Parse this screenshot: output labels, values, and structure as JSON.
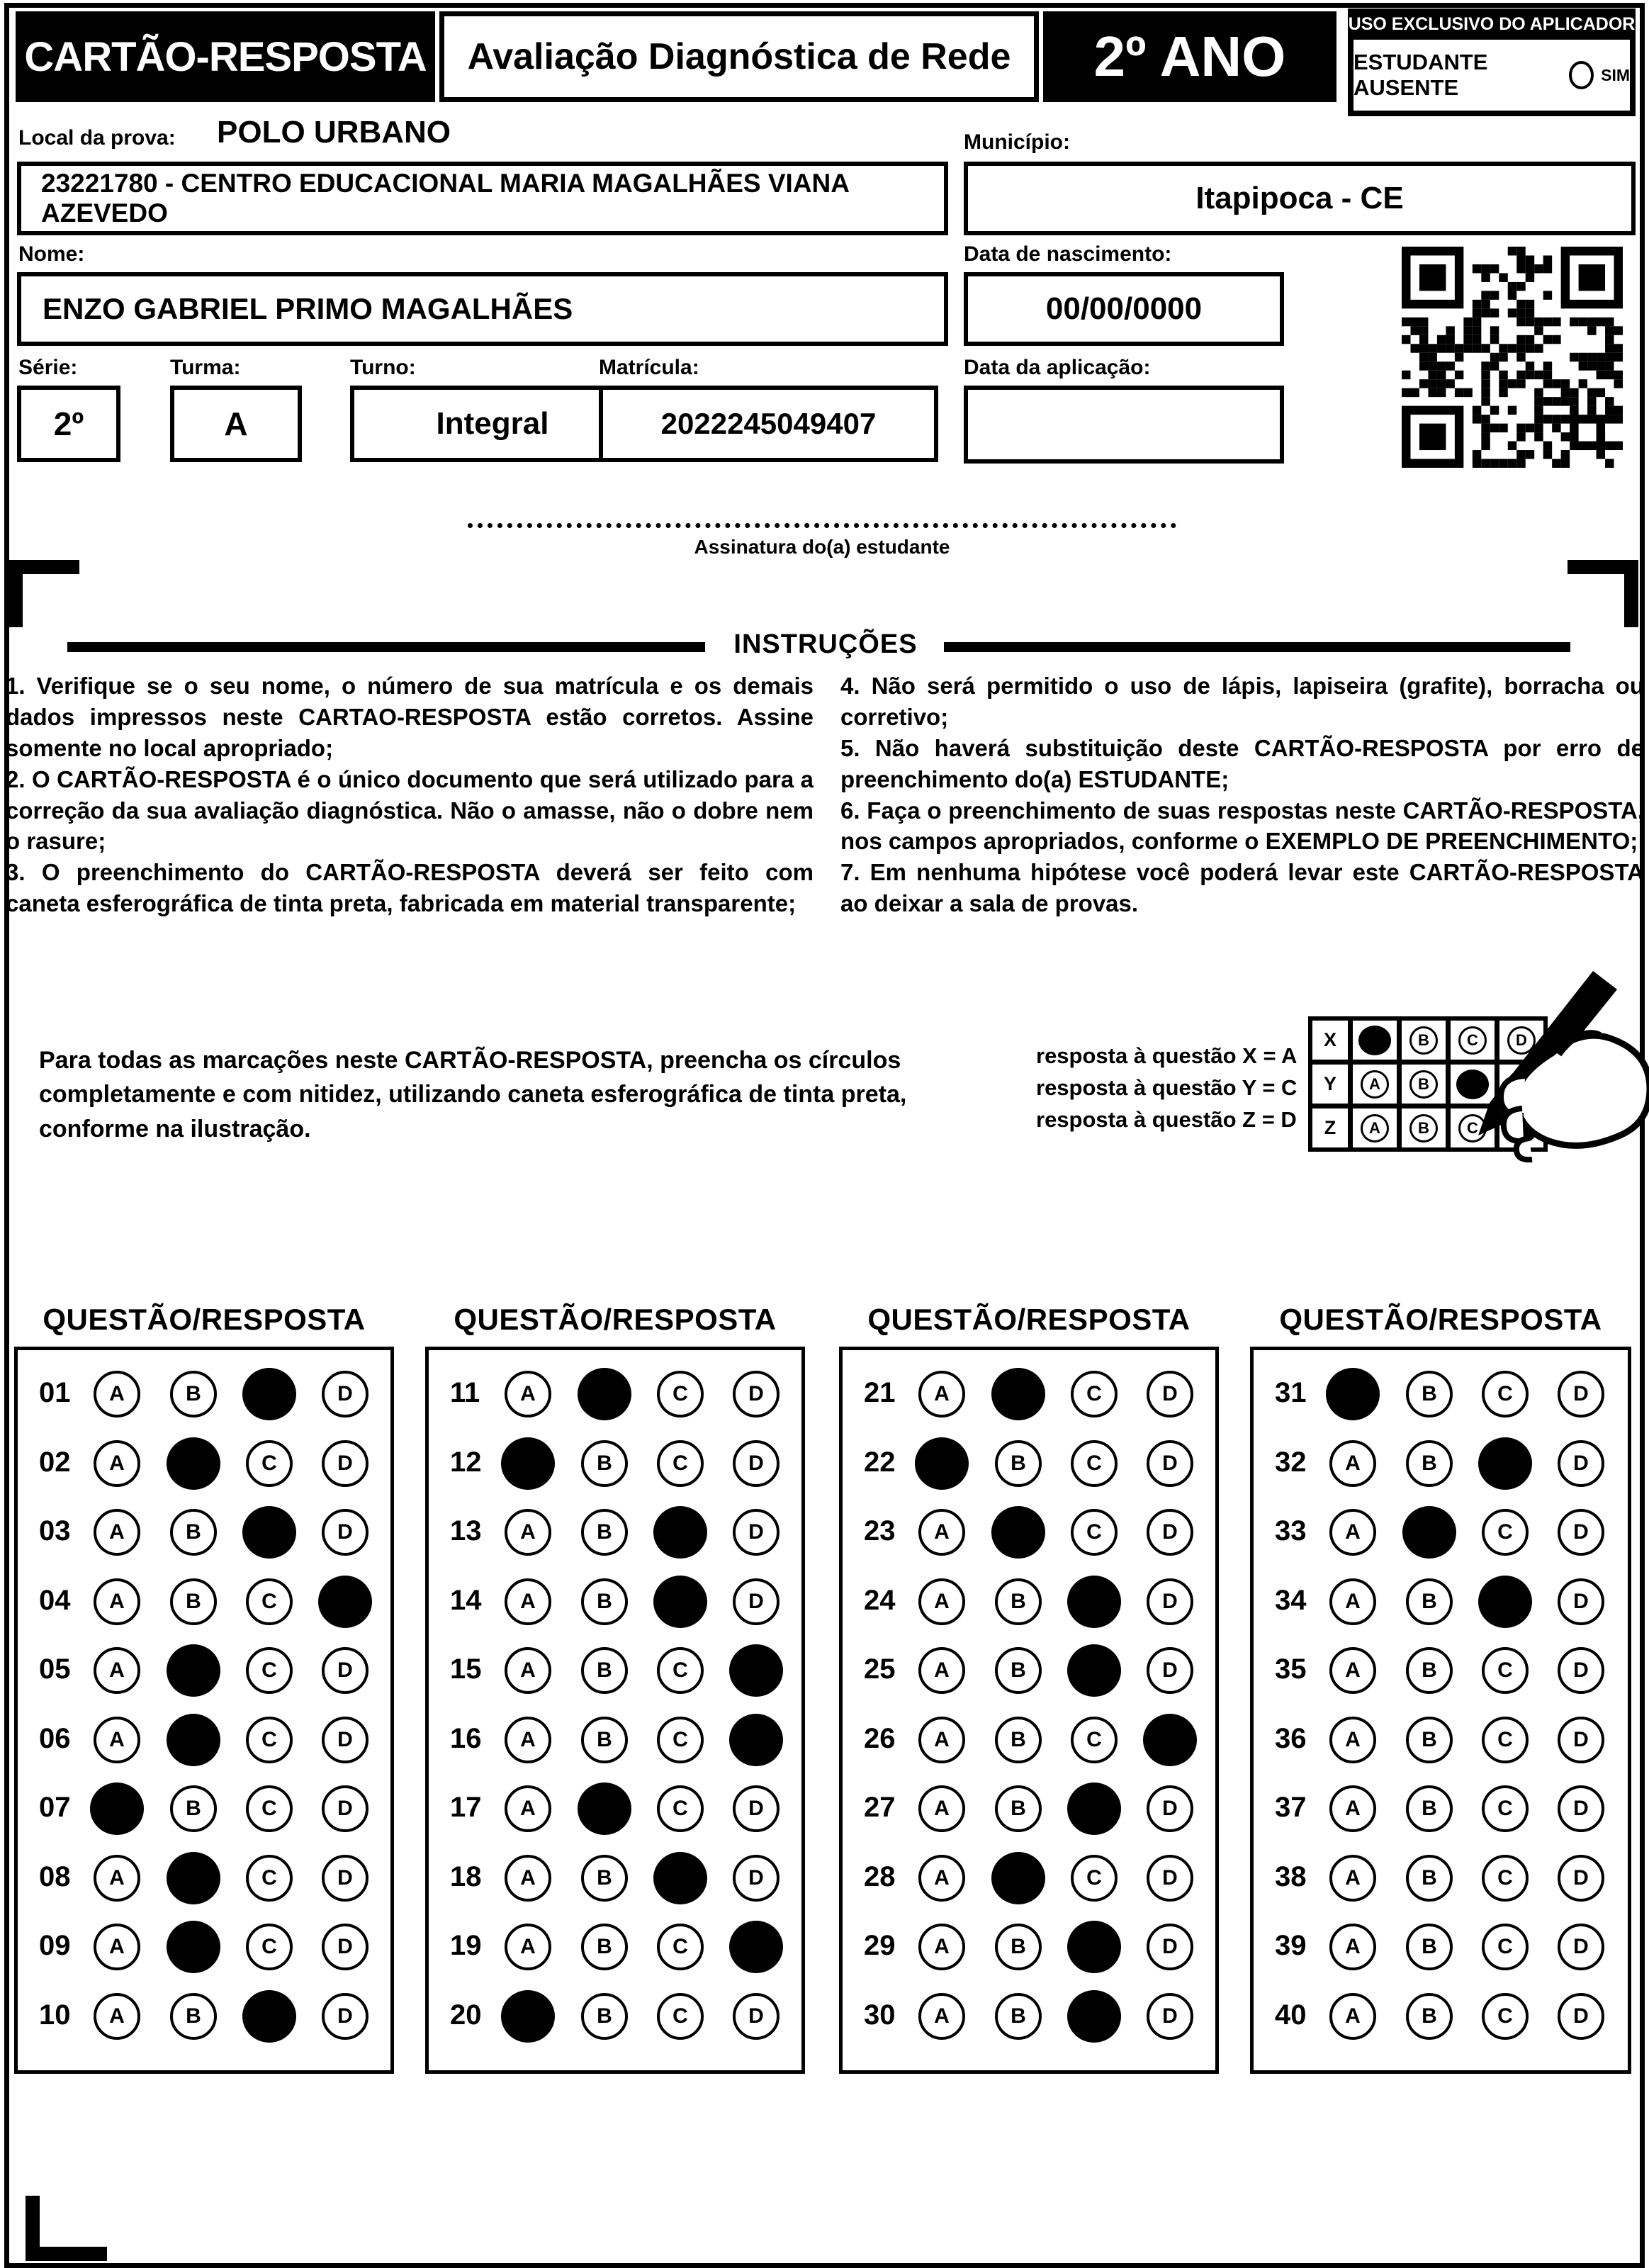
{
  "ink_color": "#000000",
  "paper_color": "#ffffff",
  "header": {
    "title": "CARTÃO-RESPOSTA",
    "subtitle": "Avaliação Diagnóstica de Rede",
    "grade": "2º ANO",
    "aplicador_title": "USO EXCLUSIVO DO APLICADOR",
    "absent_label": "ESTUDANTE AUSENTE",
    "absent_yes": "SIM"
  },
  "form": {
    "local_label": "Local da prova:",
    "local_value": "POLO URBANO",
    "school": "23221780 - CENTRO EDUCACIONAL MARIA MAGALHÃES VIANA AZEVEDO",
    "municipio_label": "Município:",
    "municipio_value": "Itapipoca - CE",
    "nome_label": "Nome:",
    "nome_value": "ENZO GABRIEL PRIMO MAGALHÃES",
    "nascimento_label": "Data de nascimento:",
    "nascimento_value": "00/00/0000",
    "serie_label": "Série:",
    "serie_value": "2º",
    "turma_label": "Turma:",
    "turma_value": "A",
    "turno_label": "Turno:",
    "turno_value": "Integral",
    "matricula_label": "Matrícula:",
    "matricula_value": "2022245049407",
    "aplicacao_label": "Data da aplicação:",
    "aplicacao_value": "",
    "assinatura_label": "Assinatura do(a) estudante"
  },
  "instructions": {
    "title": "INSTRUÇÕES",
    "col1": [
      "1. Verifique se o seu nome, o número de sua matrícula e os demais dados impressos neste CARTAO-RESPOSTA estão corretos. Assine somente no local apropriado;",
      "2. O CARTÃO-RESPOSTA é o único documento que será utilizado para a correção da sua avaliação diagnóstica. Não o amasse, não o dobre nem o rasure;",
      "3. O preenchimento do CARTÃO-RESPOSTA deverá ser feito com caneta esferográfica de tinta preta, fabricada em material transparente;"
    ],
    "col2": [
      "4. Não será permitido o uso de lápis, lapiseira (grafite), borracha ou corretivo;",
      "5. Não haverá substituição deste CARTÃO-RESPOSTA por erro de preenchimento do(a) ESTUDANTE;",
      "6. Faça o preenchimento de suas respostas neste CARTÃO-RESPOSTA, nos campos apropriados, conforme o EXEMPLO DE PREENCHIMENTO;",
      "7. Em nenhuma hipótese você poderá levar este CARTÃO-RESPOSTA ao deixar a sala de provas."
    ]
  },
  "example": {
    "paragraph": "Para todas as marcações neste CARTÃO-RESPOSTA, preencha os círculos completamente e com nitidez, utilizando caneta esferográfica de tinta preta, conforme na ilustração.",
    "legend": [
      "resposta à questão X = A",
      "resposta à questão Y = C",
      "resposta à questão Z = D"
    ],
    "options": [
      "A",
      "B",
      "C",
      "D"
    ],
    "rows": [
      {
        "label": "X",
        "filled": "A"
      },
      {
        "label": "Y",
        "filled": "C"
      },
      {
        "label": "Z",
        "filled": "D"
      }
    ]
  },
  "answers": {
    "column_title": "QUESTÃO/RESPOSTA",
    "options": [
      "A",
      "B",
      "C",
      "D"
    ],
    "columns": [
      [
        {
          "n": "01",
          "marked": "C"
        },
        {
          "n": "02",
          "marked": "B"
        },
        {
          "n": "03",
          "marked": "C"
        },
        {
          "n": "04",
          "marked": "D"
        },
        {
          "n": "05",
          "marked": "B"
        },
        {
          "n": "06",
          "marked": "B"
        },
        {
          "n": "07",
          "marked": "A"
        },
        {
          "n": "08",
          "marked": "B"
        },
        {
          "n": "09",
          "marked": "B"
        },
        {
          "n": "10",
          "marked": "C"
        }
      ],
      [
        {
          "n": "11",
          "marked": "B"
        },
        {
          "n": "12",
          "marked": "A"
        },
        {
          "n": "13",
          "marked": "C"
        },
        {
          "n": "14",
          "marked": "C"
        },
        {
          "n": "15",
          "marked": "D"
        },
        {
          "n": "16",
          "marked": "D"
        },
        {
          "n": "17",
          "marked": "B"
        },
        {
          "n": "18",
          "marked": "C"
        },
        {
          "n": "19",
          "marked": "D"
        },
        {
          "n": "20",
          "marked": "A"
        }
      ],
      [
        {
          "n": "21",
          "marked": "B"
        },
        {
          "n": "22",
          "marked": "A"
        },
        {
          "n": "23",
          "marked": "B"
        },
        {
          "n": "24",
          "marked": "C"
        },
        {
          "n": "25",
          "marked": "C"
        },
        {
          "n": "26",
          "marked": "D"
        },
        {
          "n": "27",
          "marked": "C"
        },
        {
          "n": "28",
          "marked": "B"
        },
        {
          "n": "29",
          "marked": "C"
        },
        {
          "n": "30",
          "marked": "C"
        }
      ],
      [
        {
          "n": "31",
          "marked": "A"
        },
        {
          "n": "32",
          "marked": "C"
        },
        {
          "n": "33",
          "marked": "B"
        },
        {
          "n": "34",
          "marked": "C"
        },
        {
          "n": "35",
          "marked": null
        },
        {
          "n": "36",
          "marked": null
        },
        {
          "n": "37",
          "marked": null
        },
        {
          "n": "38",
          "marked": null
        },
        {
          "n": "39",
          "marked": null
        },
        {
          "n": "40",
          "marked": null
        }
      ]
    ]
  }
}
